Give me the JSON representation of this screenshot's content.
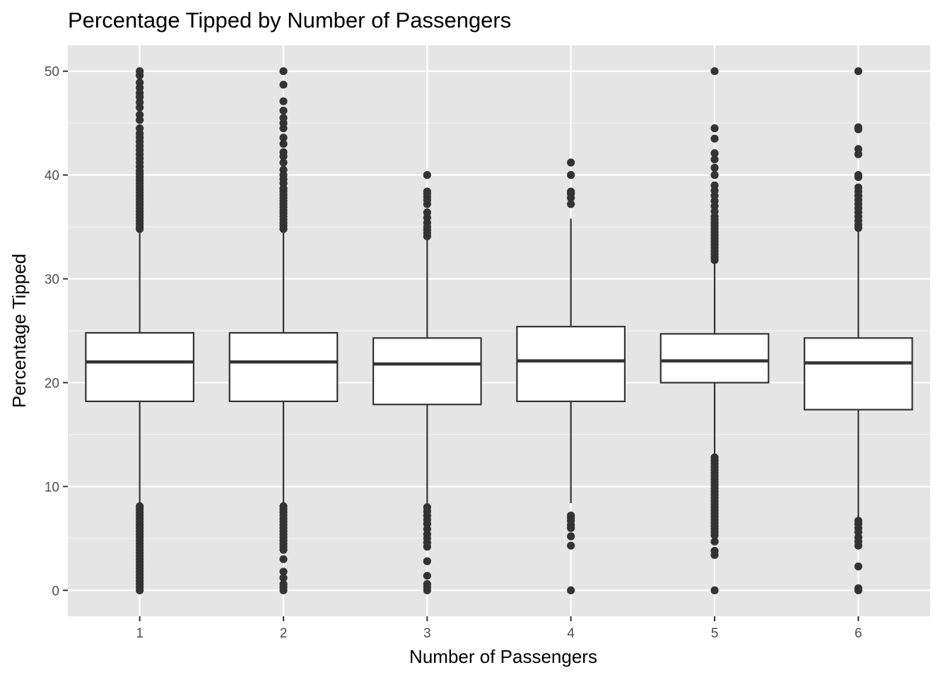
{
  "chart_data": {
    "type": "box",
    "title": "Percentage Tipped by Number of Passengers",
    "xlabel": "Number of Passengers",
    "ylabel": "Percentage Tipped",
    "ylim": [
      -2.5,
      52.5
    ],
    "y_ticks": [
      0,
      10,
      20,
      30,
      40,
      50
    ],
    "grid": true,
    "categories": [
      "1",
      "2",
      "3",
      "4",
      "5",
      "6"
    ],
    "boxes": [
      {
        "category": "1",
        "q1": 18.2,
        "median": 22.0,
        "q3": 24.8,
        "whisker_low": 8.4,
        "whisker_high": 34.7,
        "outliers": [
          0,
          0.3,
          0.6,
          0.9,
          1.2,
          1.5,
          1.8,
          2.1,
          2.4,
          2.7,
          3.0,
          3.3,
          3.6,
          3.9,
          4.2,
          4.5,
          4.8,
          5.1,
          5.4,
          5.7,
          6.0,
          6.3,
          6.6,
          6.9,
          7.2,
          7.5,
          7.8,
          8.1,
          34.8,
          35.0,
          35.3,
          35.6,
          35.9,
          36.2,
          36.5,
          36.8,
          37.1,
          37.4,
          37.7,
          38.0,
          38.3,
          38.6,
          38.9,
          39.2,
          39.5,
          39.8,
          40.1,
          40.4,
          40.8,
          41.2,
          41.6,
          42.0,
          42.4,
          42.8,
          43.2,
          43.6,
          44.0,
          44.5,
          45.3,
          45.8,
          46.5,
          47.0,
          47.5,
          47.9,
          48.4,
          48.9,
          49.6,
          50.0
        ]
      },
      {
        "category": "2",
        "q1": 18.2,
        "median": 22.0,
        "q3": 24.8,
        "whisker_low": 8.4,
        "whisker_high": 34.7,
        "outliers": [
          0,
          0.3,
          0.6,
          1.2,
          1.8,
          3.0,
          3.9,
          4.2,
          4.5,
          4.8,
          5.1,
          5.4,
          5.7,
          6.0,
          6.3,
          6.6,
          6.9,
          7.2,
          7.5,
          7.8,
          8.1,
          34.8,
          35.1,
          35.4,
          35.7,
          36.0,
          36.3,
          36.6,
          36.9,
          37.2,
          37.5,
          37.8,
          38.1,
          38.4,
          38.7,
          39.2,
          39.6,
          40.0,
          40.5,
          41.2,
          41.8,
          42.2,
          43.0,
          43.6,
          44.5,
          45.0,
          45.5,
          46.2,
          47.1,
          48.7,
          50.0
        ]
      },
      {
        "category": "3",
        "q1": 17.9,
        "median": 21.8,
        "q3": 24.3,
        "whisker_low": 8.3,
        "whisker_high": 34.0,
        "outliers": [
          0,
          0.3,
          0.6,
          1.4,
          2.8,
          4.2,
          4.6,
          5.0,
          5.4,
          5.9,
          6.4,
          6.8,
          7.2,
          7.6,
          8.0,
          34.1,
          34.4,
          34.7,
          35.0,
          35.4,
          35.9,
          36.4,
          37.2,
          37.6,
          37.9,
          38.2,
          38.4,
          40.0
        ]
      },
      {
        "category": "4",
        "q1": 18.2,
        "median": 22.1,
        "q3": 25.4,
        "whisker_low": 8.4,
        "whisker_high": 35.8,
        "outliers": [
          0,
          4.3,
          5.2,
          6.0,
          6.3,
          6.7,
          7.0,
          7.2,
          37.2,
          37.8,
          38.2,
          38.4,
          40.0,
          41.2
        ]
      },
      {
        "category": "5",
        "q1": 20.0,
        "median": 22.1,
        "q3": 24.7,
        "whisker_low": 13.0,
        "whisker_high": 31.6,
        "outliers": [
          0,
          3.4,
          3.8,
          4.7,
          5.3,
          5.6,
          5.9,
          6.2,
          6.5,
          6.8,
          7.1,
          7.4,
          7.7,
          8.0,
          8.3,
          8.6,
          8.9,
          9.2,
          9.5,
          9.8,
          10.1,
          10.4,
          10.7,
          11.0,
          11.3,
          11.6,
          11.9,
          12.2,
          12.5,
          12.8,
          31.8,
          32.1,
          32.4,
          32.7,
          33.0,
          33.3,
          33.6,
          33.9,
          34.2,
          34.5,
          34.8,
          35.1,
          35.4,
          35.7,
          36.0,
          36.5,
          37.0,
          37.5,
          38.0,
          38.5,
          39.0,
          40.0,
          40.7,
          41.5,
          42.1,
          43.5,
          44.5,
          50.0
        ]
      },
      {
        "category": "6",
        "q1": 17.4,
        "median": 21.9,
        "q3": 24.3,
        "whisker_low": 6.8,
        "whisker_high": 34.6,
        "outliers": [
          0,
          0.2,
          2.3,
          4.3,
          4.7,
          5.1,
          5.6,
          6.0,
          6.4,
          6.7,
          34.9,
          35.2,
          35.6,
          36.0,
          36.4,
          36.8,
          37.2,
          37.6,
          38.0,
          38.4,
          38.8,
          39.8,
          40.0,
          42.0,
          42.5,
          44.4,
          44.6,
          50.0
        ]
      }
    ]
  }
}
